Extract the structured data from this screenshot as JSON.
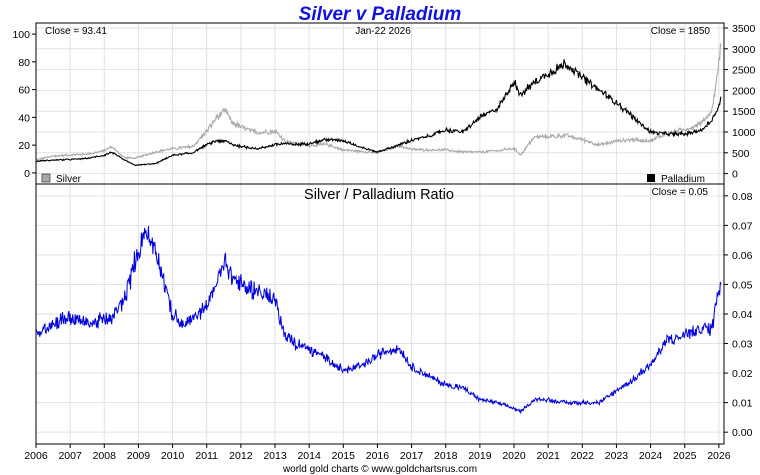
{
  "colors": {
    "title": "#1010e0",
    "silver": "#aaaaaa",
    "palladium": "#000000",
    "ratio": "#0000dd"
  },
  "chart_data": [
    {
      "type": "line",
      "title": "Silver v Palladium",
      "date_label": "Jan-22  2026",
      "left_close_label": "Close = 93.41",
      "right_close_label": "Close = 1850",
      "left_axis": {
        "range": [
          -8,
          108
        ],
        "ticks": [
          "0",
          "20",
          "40",
          "60",
          "80",
          "100"
        ],
        "tick_values": [
          0,
          20,
          40,
          60,
          80,
          100
        ]
      },
      "right_axis": {
        "range": [
          -250,
          3620
        ],
        "ticks": [
          "0",
          "500",
          "1000",
          "1500",
          "2000",
          "2500",
          "3000",
          "3500"
        ],
        "tick_values": [
          0,
          500,
          1000,
          1500,
          2000,
          2500,
          3000,
          3500
        ]
      },
      "series": [
        {
          "name": "Silver",
          "axis": "left",
          "color": "#aaaaaa",
          "x": [
            2006.0,
            2006.5,
            2007.0,
            2007.5,
            2008.0,
            2008.2,
            2008.6,
            2008.9,
            2009.5,
            2010.0,
            2010.6,
            2011.0,
            2011.3,
            2011.55,
            2011.75,
            2012.0,
            2012.5,
            2013.0,
            2013.3,
            2013.6,
            2014.0,
            2014.5,
            2015.0,
            2015.5,
            2016.0,
            2016.6,
            2017.0,
            2017.5,
            2018.0,
            2018.5,
            2019.0,
            2019.5,
            2020.0,
            2020.2,
            2020.6,
            2021.0,
            2021.5,
            2022.0,
            2022.5,
            2023.0,
            2023.5,
            2024.0,
            2024.5,
            2025.0,
            2025.5,
            2025.8,
            2025.95,
            2026.06
          ],
          "values": [
            9.5,
            12,
            13,
            13.5,
            16,
            19,
            11,
            10.5,
            15,
            17.5,
            19,
            30,
            40,
            45,
            36,
            33,
            29,
            30,
            23,
            21,
            20,
            20.5,
            16.5,
            15.5,
            14.5,
            19.5,
            17,
            16.5,
            16.5,
            15,
            15,
            16,
            17.5,
            13,
            26,
            26,
            27,
            24,
            20,
            23,
            24,
            23,
            29,
            31,
            36,
            45,
            70,
            93.41
          ]
        },
        {
          "name": "Palladium",
          "axis": "right",
          "color": "#000000",
          "x": [
            2006.0,
            2006.5,
            2007.0,
            2007.5,
            2008.0,
            2008.2,
            2008.6,
            2008.9,
            2009.5,
            2010.0,
            2010.6,
            2011.0,
            2011.3,
            2011.55,
            2011.75,
            2012.0,
            2012.5,
            2013.0,
            2013.3,
            2013.6,
            2014.0,
            2014.5,
            2015.0,
            2015.5,
            2016.0,
            2016.6,
            2017.0,
            2017.5,
            2018.0,
            2018.5,
            2019.0,
            2019.5,
            2020.0,
            2020.2,
            2020.6,
            2021.0,
            2021.5,
            2022.0,
            2022.5,
            2023.0,
            2023.5,
            2024.0,
            2024.5,
            2025.0,
            2025.5,
            2025.8,
            2025.95,
            2026.06
          ],
          "values": [
            295,
            325,
            340,
            365,
            440,
            520,
            320,
            200,
            240,
            440,
            500,
            700,
            790,
            780,
            700,
            650,
            600,
            700,
            720,
            700,
            720,
            820,
            800,
            640,
            520,
            680,
            800,
            900,
            1050,
            1000,
            1350,
            1550,
            2200,
            1900,
            2200,
            2400,
            2650,
            2300,
            2000,
            1700,
            1350,
            1000,
            950,
            950,
            1050,
            1300,
            1500,
            1850
          ]
        }
      ],
      "legend": {
        "left": "Silver",
        "right": "Palladium"
      }
    },
    {
      "type": "line",
      "title": "Silver  /  Palladium Ratio",
      "close_label": "Close = 0.05",
      "y_axis": {
        "range": [
          -0.004,
          0.084
        ],
        "ticks": [
          "0.00",
          "0.01",
          "0.02",
          "0.03",
          "0.04",
          "0.05",
          "0.06",
          "0.07",
          "0.08"
        ],
        "tick_values": [
          0,
          0.01,
          0.02,
          0.03,
          0.04,
          0.05,
          0.06,
          0.07,
          0.08
        ]
      },
      "series": [
        {
          "name": "Silver / Palladium Ratio",
          "color": "#0000dd",
          "x": [
            2006.0,
            2006.5,
            2007.0,
            2007.5,
            2008.0,
            2008.2,
            2008.6,
            2008.9,
            2009.2,
            2009.5,
            2010.0,
            2010.3,
            2010.6,
            2011.0,
            2011.3,
            2011.55,
            2011.75,
            2012.0,
            2012.5,
            2013.0,
            2013.3,
            2013.6,
            2014.0,
            2014.5,
            2015.0,
            2015.5,
            2016.0,
            2016.6,
            2017.0,
            2017.5,
            2018.0,
            2018.5,
            2019.0,
            2019.5,
            2020.0,
            2020.2,
            2020.6,
            2021.0,
            2021.5,
            2022.0,
            2022.5,
            2023.0,
            2023.5,
            2024.0,
            2024.5,
            2025.0,
            2025.5,
            2025.8,
            2025.95,
            2026.06
          ],
          "values": [
            0.033,
            0.037,
            0.039,
            0.037,
            0.038,
            0.038,
            0.045,
            0.058,
            0.068,
            0.062,
            0.04,
            0.036,
            0.038,
            0.043,
            0.051,
            0.058,
            0.052,
            0.05,
            0.048,
            0.045,
            0.033,
            0.03,
            0.028,
            0.025,
            0.021,
            0.022,
            0.026,
            0.029,
            0.022,
            0.019,
            0.016,
            0.015,
            0.011,
            0.01,
            0.008,
            0.007,
            0.011,
            0.011,
            0.01,
            0.01,
            0.01,
            0.014,
            0.018,
            0.023,
            0.031,
            0.033,
            0.035,
            0.035,
            0.047,
            0.05
          ]
        }
      ],
      "x_axis": {
        "range": [
          2006,
          2026.15
        ],
        "ticks": [
          "2006",
          "2007",
          "2008",
          "2009",
          "2010",
          "2011",
          "2012",
          "2013",
          "2014",
          "2015",
          "2016",
          "2017",
          "2018",
          "2019",
          "2020",
          "2021",
          "2022",
          "2023",
          "2024",
          "2025",
          "2026"
        ],
        "tick_values": [
          2006,
          2007,
          2008,
          2009,
          2010,
          2011,
          2012,
          2013,
          2014,
          2015,
          2016,
          2017,
          2018,
          2019,
          2020,
          2021,
          2022,
          2023,
          2024,
          2025,
          2026
        ]
      }
    }
  ],
  "footer": "world gold charts © www.goldchartsrus.com"
}
